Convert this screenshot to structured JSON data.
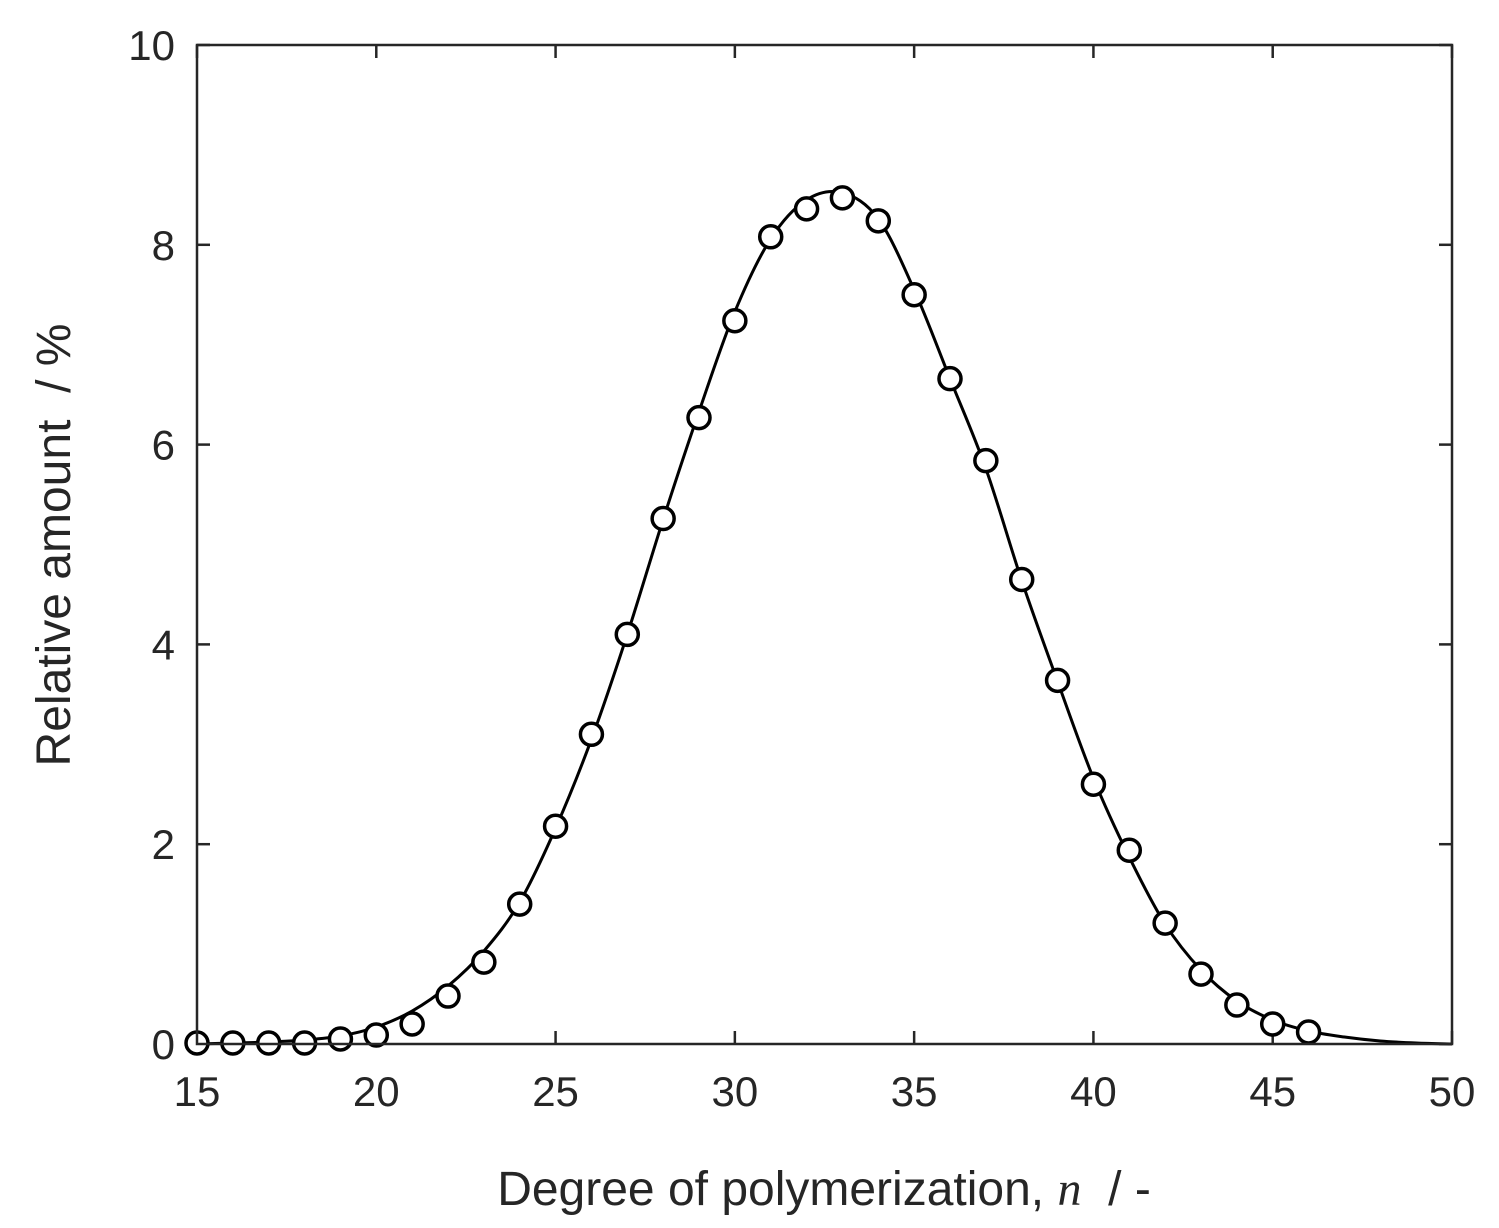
{
  "chart_data": {
    "type": "scatter",
    "title": "",
    "xlabel": {
      "prefix": "Degree of polymerization, ",
      "variable": "n",
      "suffix": "  / -"
    },
    "ylabel": "Relative amount  / %",
    "xlim": [
      15,
      50
    ],
    "ylim": [
      0,
      10
    ],
    "xticks": [
      "15",
      "20",
      "25",
      "30",
      "35",
      "40",
      "45",
      "50"
    ],
    "yticks": [
      "0",
      "2",
      "4",
      "6",
      "8",
      "10"
    ],
    "grid": false,
    "legend": "none",
    "colors": {
      "axis": "#262626",
      "series": "#000000",
      "marker_fill": "#ffffff"
    },
    "series": [
      {
        "kind": "markers",
        "marker": "open-circle",
        "x": [
          15,
          16,
          17,
          18,
          19,
          20,
          21,
          22,
          23,
          24,
          25,
          26,
          27,
          28,
          29,
          30,
          31,
          32,
          33,
          34,
          35,
          36,
          37,
          38,
          39,
          40,
          41,
          42,
          43,
          44,
          45,
          46
        ],
        "y": [
          0.01,
          0.01,
          0.01,
          0.01,
          0.05,
          0.09,
          0.2,
          0.48,
          0.82,
          1.4,
          2.18,
          3.1,
          4.1,
          5.26,
          6.27,
          7.24,
          8.08,
          8.36,
          8.47,
          8.24,
          7.5,
          6.66,
          5.84,
          4.65,
          3.64,
          2.6,
          1.94,
          1.21,
          0.7,
          0.39,
          0.2,
          0.12
        ]
      },
      {
        "kind": "line",
        "x": [
          15,
          16,
          17,
          18,
          19,
          20,
          21,
          22,
          23,
          24,
          25,
          26,
          27,
          28,
          29,
          30,
          31,
          32,
          33,
          34,
          35,
          36,
          37,
          38,
          39,
          40,
          41,
          42,
          43,
          44,
          45,
          46,
          47,
          48,
          49,
          50
        ],
        "y": [
          0.0,
          0.01,
          0.02,
          0.04,
          0.08,
          0.17,
          0.33,
          0.58,
          0.93,
          1.42,
          2.16,
          3.05,
          4.1,
          5.25,
          6.33,
          7.33,
          8.06,
          8.45,
          8.52,
          8.26,
          7.55,
          6.66,
          5.76,
          4.64,
          3.63,
          2.66,
          1.87,
          1.2,
          0.74,
          0.43,
          0.24,
          0.13,
          0.07,
          0.03,
          0.01,
          0.0
        ]
      }
    ]
  }
}
